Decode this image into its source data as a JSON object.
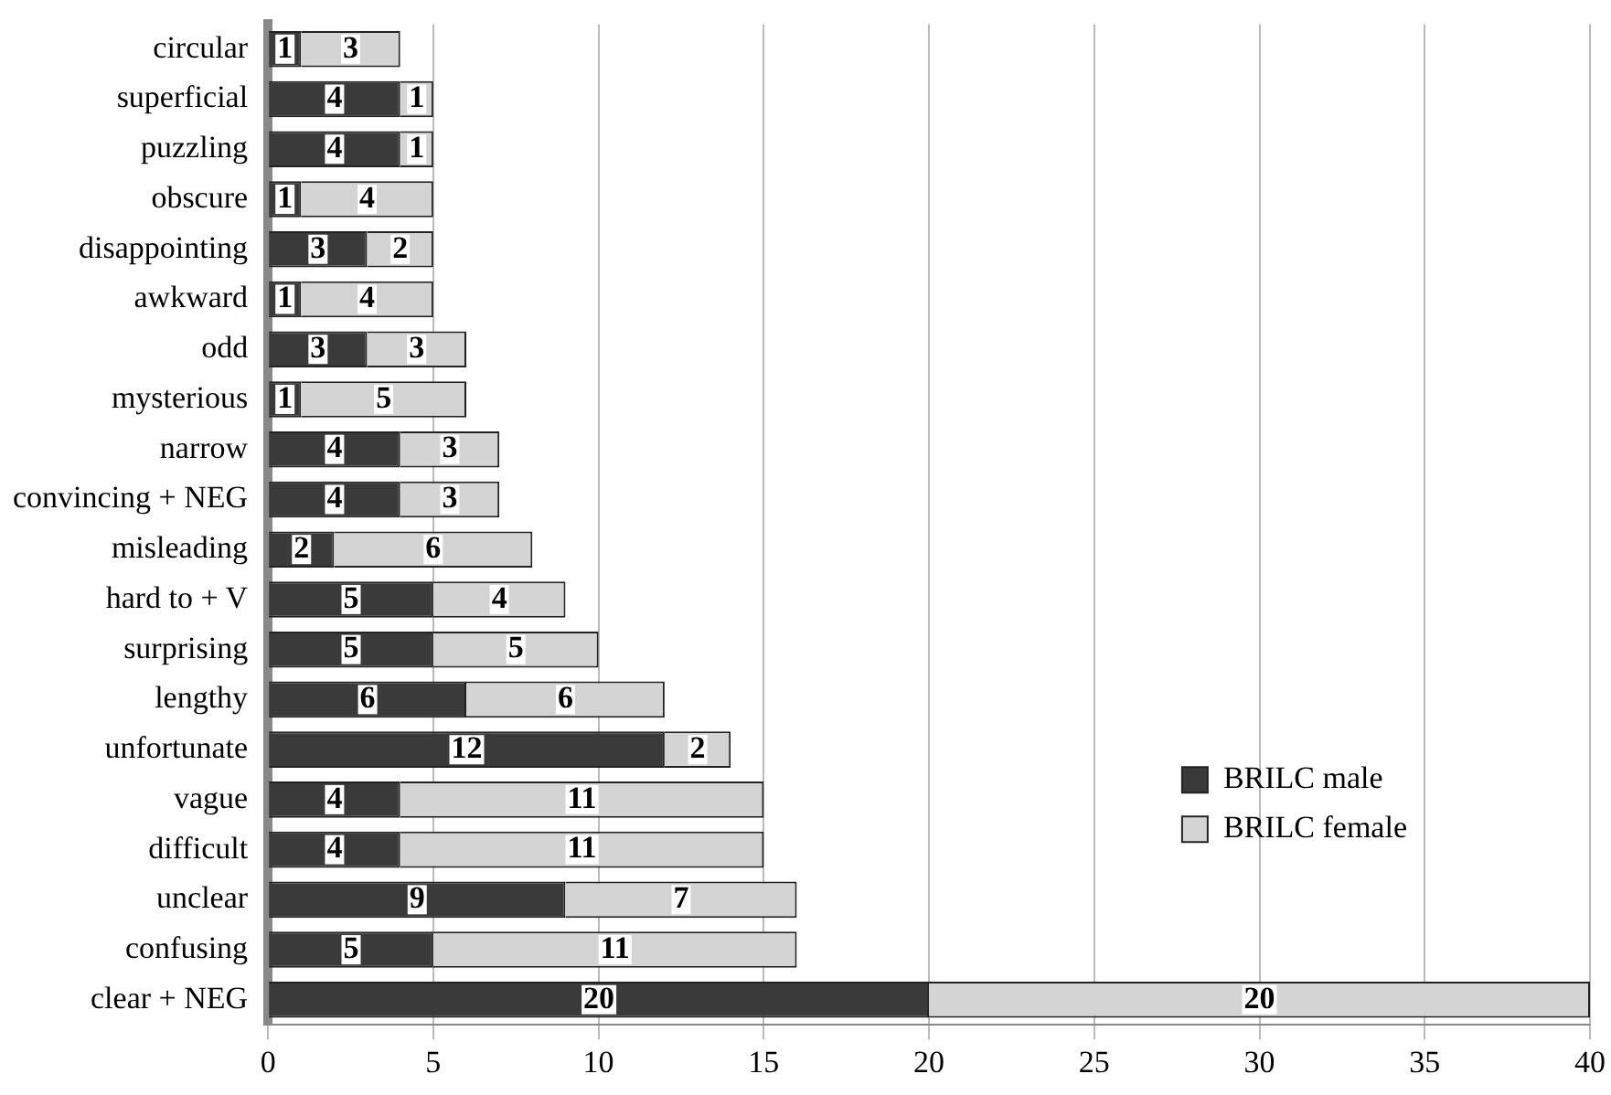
{
  "chart_data": {
    "type": "bar",
    "orientation": "horizontal",
    "stacked": true,
    "data_labels": true,
    "grid": "x",
    "legend": "right",
    "categories": [
      "circular",
      "superficial",
      "puzzling",
      "obscure",
      "disappointing",
      "awkward",
      "odd",
      "mysterious",
      "narrow",
      "convincing + NEG",
      "misleading",
      "hard to + V",
      "surprising",
      "lengthy",
      "unfortunate",
      "vague",
      "difficult",
      "unclear",
      "confusing",
      "clear + NEG"
    ],
    "series": [
      {
        "name": "BRILC male",
        "color": "#3a3a3a",
        "values": [
          1,
          4,
          4,
          1,
          3,
          1,
          3,
          1,
          4,
          4,
          2,
          5,
          5,
          6,
          12,
          4,
          4,
          9,
          5,
          20
        ]
      },
      {
        "name": "BRILC female",
        "color": "#d4d4d4",
        "values": [
          3,
          1,
          1,
          4,
          2,
          4,
          3,
          5,
          3,
          3,
          6,
          4,
          5,
          6,
          2,
          11,
          11,
          7,
          11,
          20
        ]
      }
    ],
    "xlim": [
      0,
      40
    ],
    "xticks": [
      0,
      5,
      10,
      15,
      20,
      25,
      30,
      35,
      40
    ]
  }
}
